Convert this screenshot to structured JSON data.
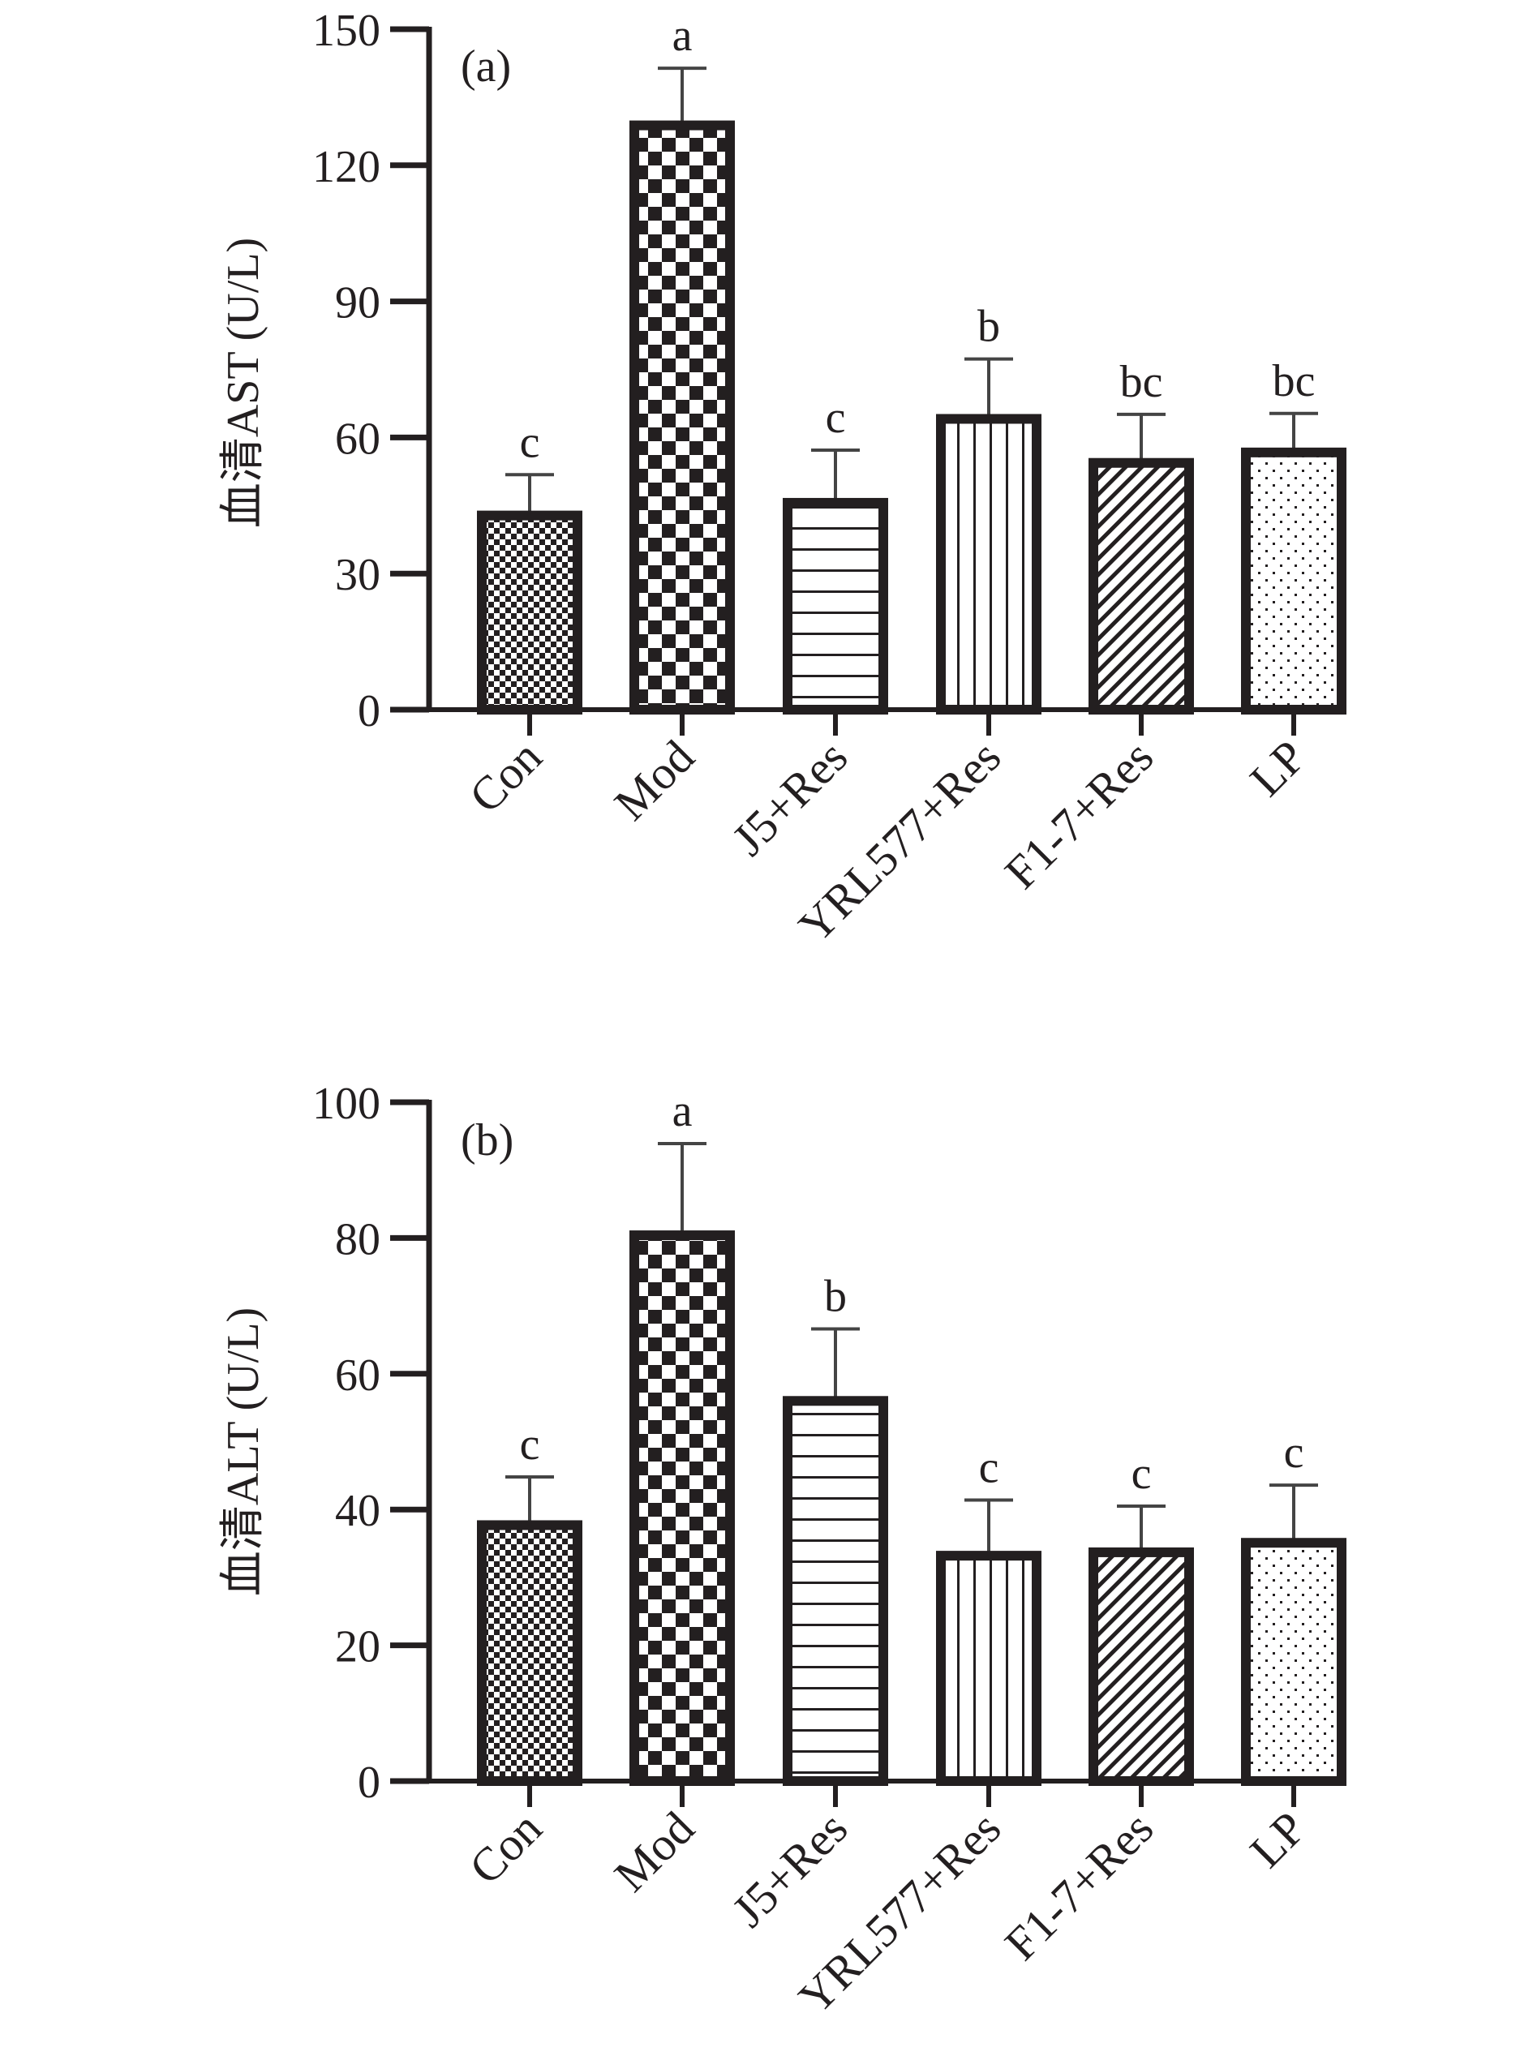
{
  "chart_data": [
    {
      "type": "bar",
      "panel_label": "(a)",
      "ylabel": "血清AST (U/L)",
      "ylim": [
        0,
        150
      ],
      "yticks": [
        0,
        30,
        60,
        90,
        120,
        150
      ],
      "categories": [
        "Con",
        "Mod",
        "J5+Res",
        "YRL577+Res",
        "F1-7+Res",
        "LP"
      ],
      "values": [
        42.8,
        128.8,
        45.6,
        64.1,
        54.4,
        56.7
      ],
      "error_upper": [
        51.8,
        141.4,
        57.2,
        77.3,
        65.1,
        65.3
      ],
      "significance": [
        "c",
        "a",
        "c",
        "b",
        "bc",
        "bc"
      ],
      "patterns": [
        "small-checker",
        "large-checker",
        "horizontal-lines",
        "vertical-lines",
        "diagonal-lines",
        "dots"
      ],
      "grid": false
    },
    {
      "type": "bar",
      "panel_label": "(b)",
      "ylabel": "血清ALT (U/L)",
      "ylim": [
        0,
        100
      ],
      "yticks": [
        0,
        20,
        40,
        60,
        80,
        100
      ],
      "categories": [
        "Con",
        "Mod",
        "J5+Res",
        "YRL577+Res",
        "F1-7+Res",
        "LP"
      ],
      "values": [
        37.7,
        80.4,
        56.0,
        33.2,
        33.7,
        35.1
      ],
      "error_upper": [
        44.8,
        93.9,
        66.6,
        41.4,
        40.5,
        43.6
      ],
      "significance": [
        "c",
        "a",
        "b",
        "c",
        "c",
        "c"
      ],
      "patterns": [
        "small-checker",
        "large-checker",
        "horizontal-lines",
        "vertical-lines",
        "diagonal-lines",
        "dots"
      ],
      "grid": false
    }
  ],
  "colors": {
    "ink": "#231f20",
    "fill": "#ffffff"
  }
}
